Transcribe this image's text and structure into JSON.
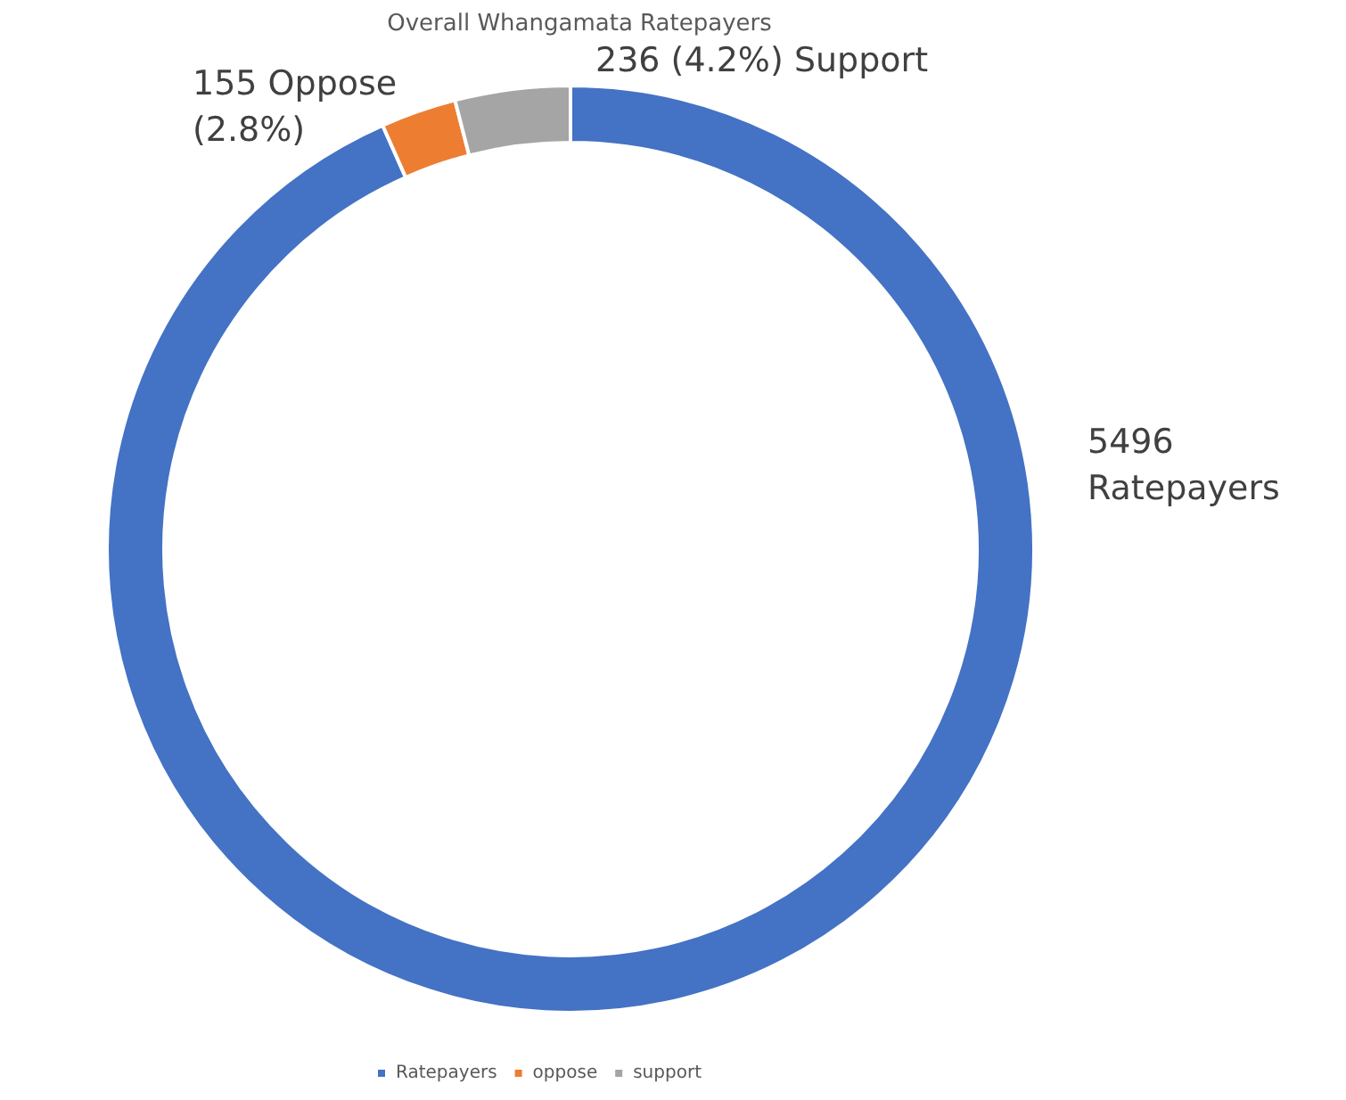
{
  "chart_data": {
    "type": "donut",
    "title": "Overall Whangamata Ratepayers",
    "categories": [
      "Ratepayers",
      "oppose",
      "support"
    ],
    "values": [
      5496,
      155,
      236
    ],
    "colors": [
      "#4472c4",
      "#ed7d31",
      "#a5a5a5"
    ],
    "value_labels": [
      "5496\nRatepayers",
      "155 Oppose\n(2.8%)",
      "236 (4.2%) Support"
    ],
    "legend": "bottom"
  }
}
